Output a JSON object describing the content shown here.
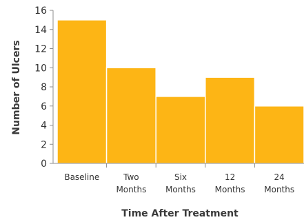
{
  "chart_data": {
    "type": "bar",
    "categories": [
      "Baseline",
      "Two Months",
      "Six Months",
      "12 Months",
      "24 Months"
    ],
    "category_lines": [
      [
        "Baseline"
      ],
      [
        "Two",
        "Months"
      ],
      [
        "Six",
        "Months"
      ],
      [
        "12",
        "Months"
      ],
      [
        "24",
        "Months"
      ]
    ],
    "values": [
      15,
      10,
      7,
      9,
      6
    ],
    "xlabel": "Time After Treatment",
    "ylabel": "Number of Ulcers",
    "ylim": [
      0,
      16
    ],
    "yticks": [
      0,
      2,
      4,
      6,
      8,
      10,
      12,
      14,
      16
    ],
    "grid": false,
    "legend": "none",
    "bar_color": "#FDB515",
    "bar_edge_color": "#ffffff"
  }
}
